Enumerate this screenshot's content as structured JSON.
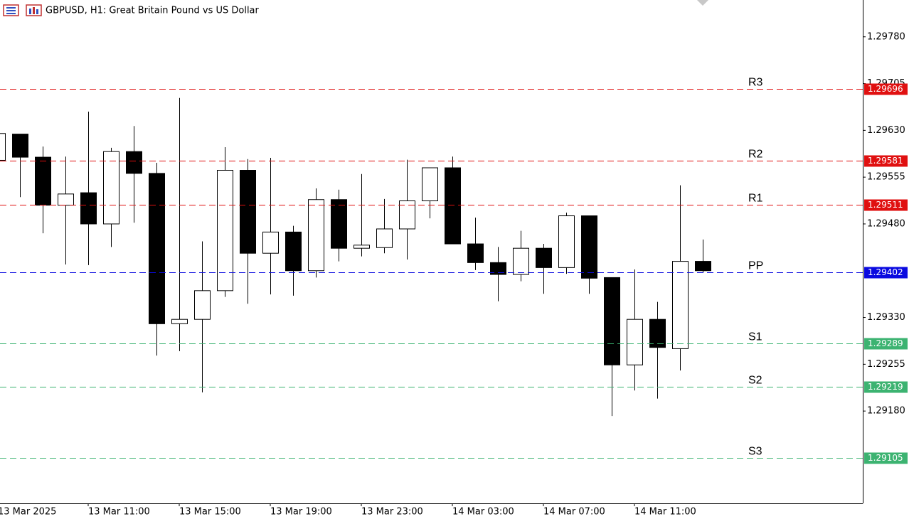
{
  "chart_data": {
    "type": "candlestick",
    "title": "GBPUSD, H1:  Great Britain Pound vs US Dollar",
    "categories": [
      "13 Mar 2025",
      null,
      null,
      null,
      "13 Mar 11:00",
      null,
      null,
      null,
      "13 Mar 15:00",
      null,
      null,
      null,
      "13 Mar 19:00",
      null,
      null,
      null,
      "13 Mar 23:00",
      null,
      null,
      null,
      "14 Mar 03:00",
      null,
      null,
      null,
      "14 Mar 07:00",
      null,
      null,
      null,
      "14 Mar 11:00",
      null,
      null,
      null
    ],
    "open": [
      1.29582,
      1.29624,
      1.29587,
      1.2951,
      1.2953,
      1.2948,
      1.29596,
      1.29561,
      1.2932,
      1.29327,
      1.29373,
      1.29566,
      1.29433,
      1.29467,
      1.29405,
      1.29519,
      1.29441,
      1.29442,
      1.29472,
      1.29517,
      1.2957,
      1.29448,
      1.29418,
      1.29399,
      1.29441,
      1.2941,
      1.29493,
      1.29394,
      1.29254,
      1.29327,
      1.2928,
      1.2942
    ],
    "high": [
      1.29625,
      1.29624,
      1.29604,
      1.29588,
      1.2966,
      1.29602,
      1.29637,
      1.29578,
      1.29682,
      1.29452,
      1.29603,
      1.29584,
      1.29586,
      1.29477,
      1.29537,
      1.29535,
      1.2956,
      1.2952,
      1.29583,
      1.2957,
      1.29588,
      1.2949,
      1.29443,
      1.29469,
      1.29448,
      1.29498,
      1.29493,
      1.29394,
      1.29407,
      1.29355,
      1.29542,
      1.29455
    ],
    "low": [
      1.29582,
      1.29523,
      1.29465,
      1.29415,
      1.29414,
      1.29443,
      1.29482,
      1.29269,
      1.29276,
      1.2921,
      1.29363,
      1.29352,
      1.29367,
      1.29365,
      1.29394,
      1.2942,
      1.29428,
      1.29433,
      1.29423,
      1.29489,
      1.29448,
      1.29406,
      1.29356,
      1.29388,
      1.29368,
      1.294,
      1.29368,
      1.29172,
      1.29213,
      1.292,
      1.29245,
      1.29402
    ],
    "close": [
      1.29625,
      1.29587,
      1.2951,
      1.29528,
      1.2948,
      1.29596,
      1.29561,
      1.2932,
      1.29327,
      1.29373,
      1.29566,
      1.29433,
      1.29467,
      1.29405,
      1.29519,
      1.29441,
      1.29446,
      1.29472,
      1.29517,
      1.2957,
      1.29448,
      1.29418,
      1.29399,
      1.29441,
      1.2941,
      1.29493,
      1.29393,
      1.29254,
      1.29327,
      1.29282,
      1.2942,
      1.29405
    ],
    "up_color": "#ffffff",
    "down_color": "#000000",
    "levels": [
      {
        "name": "R3",
        "value": 1.29696,
        "color": "#e01010"
      },
      {
        "name": "R2",
        "value": 1.29581,
        "color": "#e01010"
      },
      {
        "name": "R1",
        "value": 1.29511,
        "color": "#e01010"
      },
      {
        "name": "PP",
        "value": 1.29402,
        "color": "#0a0ae0"
      },
      {
        "name": "S1",
        "value": 1.29289,
        "color": "#3cb371"
      },
      {
        "name": "S2",
        "value": 1.29219,
        "color": "#3cb371"
      },
      {
        "name": "S3",
        "value": 1.29105,
        "color": "#3cb371"
      }
    ],
    "ylim": [
      1.29032,
      1.29839
    ],
    "yticks": [
      {
        "value": 1.2978,
        "label": "1.29780"
      },
      {
        "value": 1.29705,
        "label": "1.29705"
      },
      {
        "value": 1.2963,
        "label": "1.29630"
      },
      {
        "value": 1.29555,
        "label": "1.29555"
      },
      {
        "value": 1.2948,
        "label": "1.29480"
      },
      {
        "value": 1.2933,
        "label": "1.29330"
      },
      {
        "value": 1.29255,
        "label": "1.29255"
      },
      {
        "value": 1.2918,
        "label": "1.29180"
      }
    ],
    "grid": false
  }
}
